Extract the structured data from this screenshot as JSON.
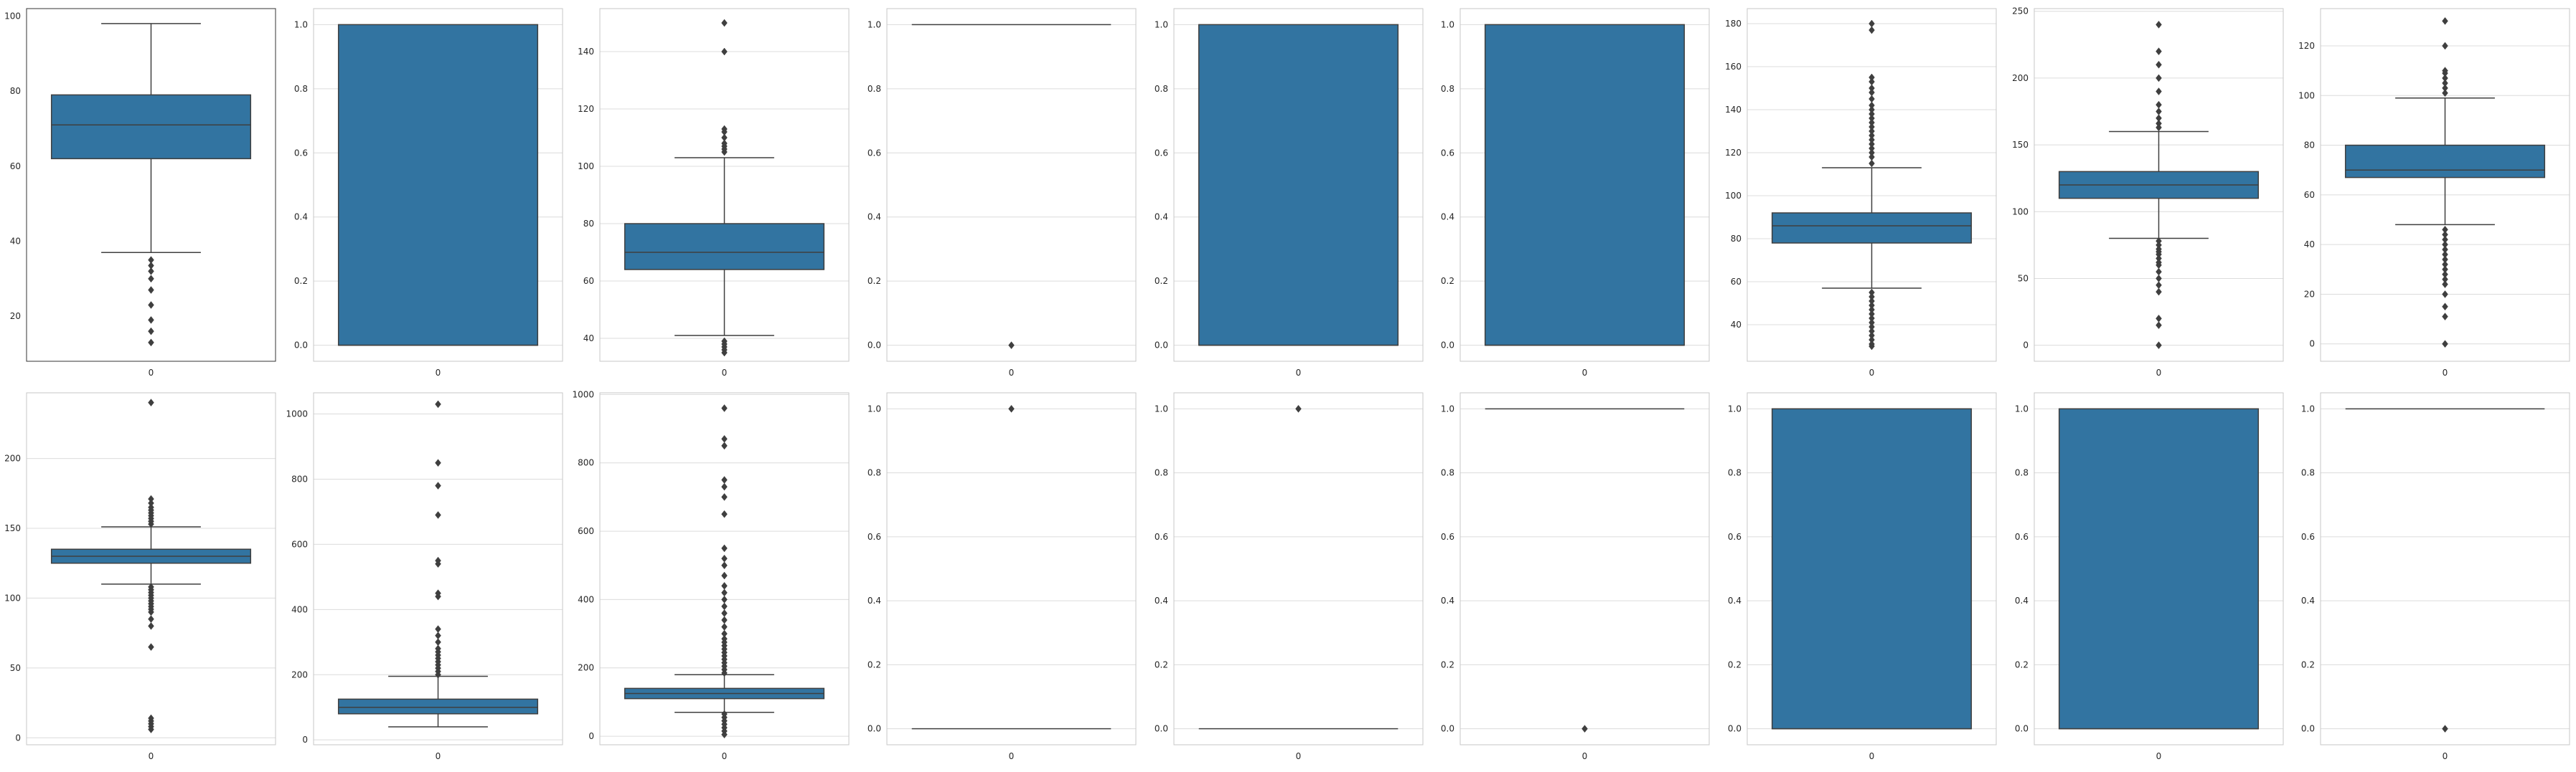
{
  "figure": {
    "background": "#ffffff",
    "box_color": "#3274a1",
    "line_color": "#3f3f3f",
    "frame_color": "#c7c7c7",
    "grid_color": "#dcdcdc",
    "grid": true,
    "layout": "2 rows x 9 columns"
  },
  "chart_data": [
    {
      "type": "box",
      "categories": [
        "0"
      ],
      "ylim": [
        8,
        102
      ],
      "yticks": [
        20,
        40,
        60,
        80,
        100
      ],
      "grid": false,
      "box": {
        "q1": 62,
        "median": 71,
        "q3": 79,
        "whisker_low": 37,
        "whisker_high": 98
      },
      "outliers": [
        35,
        33.5,
        32,
        30,
        27,
        23,
        19,
        16,
        13
      ]
    },
    {
      "type": "box",
      "categories": [
        "0"
      ],
      "ylim": [
        -0.05,
        1.05
      ],
      "yticks": [
        0.0,
        0.2,
        0.4,
        0.6,
        0.8,
        1.0
      ],
      "grid": true,
      "box": {
        "q1": 0,
        "median": 0,
        "q3": 1,
        "whisker_low": 0,
        "whisker_high": 1
      },
      "outliers": []
    },
    {
      "type": "box",
      "categories": [
        "0"
      ],
      "ylim": [
        32,
        155
      ],
      "yticks": [
        40,
        60,
        80,
        100,
        120,
        140
      ],
      "grid": true,
      "box": {
        "q1": 64,
        "median": 70,
        "q3": 80,
        "whisker_low": 41,
        "whisker_high": 103
      },
      "outliers": [
        105,
        106,
        107,
        108,
        110,
        112,
        113,
        140,
        150,
        39,
        38,
        37,
        36,
        35
      ]
    },
    {
      "type": "box",
      "categories": [
        "0"
      ],
      "ylim": [
        -0.05,
        1.05
      ],
      "yticks": [
        0.0,
        0.2,
        0.4,
        0.6,
        0.8,
        1.0
      ],
      "grid": true,
      "box": {
        "q1": 1,
        "median": 1,
        "q3": 1,
        "whisker_low": 1,
        "whisker_high": 1
      },
      "outliers": [
        0
      ]
    },
    {
      "type": "box",
      "categories": [
        "0"
      ],
      "ylim": [
        -0.05,
        1.05
      ],
      "yticks": [
        0.0,
        0.2,
        0.4,
        0.6,
        0.8,
        1.0
      ],
      "grid": true,
      "box": {
        "q1": 0,
        "median": 0,
        "q3": 1,
        "whisker_low": 0,
        "whisker_high": 1
      },
      "outliers": []
    },
    {
      "type": "box",
      "categories": [
        "0"
      ],
      "ylim": [
        -0.05,
        1.05
      ],
      "yticks": [
        0.0,
        0.2,
        0.4,
        0.6,
        0.8,
        1.0
      ],
      "grid": true,
      "box": {
        "q1": 0,
        "median": 0,
        "q3": 1,
        "whisker_low": 0,
        "whisker_high": 1
      },
      "outliers": []
    },
    {
      "type": "box",
      "categories": [
        "0"
      ],
      "ylim": [
        23,
        187
      ],
      "yticks": [
        40,
        60,
        80,
        100,
        120,
        140,
        160,
        180
      ],
      "grid": true,
      "box": {
        "q1": 78,
        "median": 86,
        "q3": 92,
        "whisker_low": 57,
        "whisker_high": 113
      },
      "outliers": [
        115,
        118,
        120,
        122,
        124,
        126,
        128,
        130,
        132,
        134,
        136,
        138,
        140,
        142,
        145,
        148,
        150,
        153,
        155,
        177,
        180,
        55,
        53,
        51,
        49,
        47,
        45,
        43,
        41,
        39,
        37,
        35,
        33,
        31,
        30
      ]
    },
    {
      "type": "box",
      "categories": [
        "0"
      ],
      "ylim": [
        -12,
        252
      ],
      "yticks": [
        0,
        50,
        100,
        150,
        200,
        250
      ],
      "grid": true,
      "box": {
        "q1": 110,
        "median": 120,
        "q3": 130,
        "whisker_low": 80,
        "whisker_high": 160
      },
      "outliers": [
        163,
        166,
        170,
        175,
        180,
        190,
        200,
        210,
        220,
        240,
        78,
        75,
        72,
        70,
        68,
        65,
        62,
        60,
        55,
        50,
        45,
        40,
        20,
        15,
        0
      ]
    },
    {
      "type": "box",
      "categories": [
        "0"
      ],
      "ylim": [
        -7,
        135
      ],
      "yticks": [
        0,
        20,
        40,
        60,
        80,
        100,
        120
      ],
      "grid": true,
      "box": {
        "q1": 67,
        "median": 70,
        "q3": 80,
        "whisker_low": 48,
        "whisker_high": 99
      },
      "outliers": [
        101,
        103,
        105,
        107,
        109,
        110,
        120,
        130,
        46,
        44,
        42,
        40,
        38,
        36,
        34,
        32,
        30,
        28,
        26,
        24,
        20,
        15,
        11,
        0
      ]
    },
    {
      "type": "box",
      "categories": [
        "0"
      ],
      "ylim": [
        -5,
        247
      ],
      "yticks": [
        0,
        50,
        100,
        150,
        200
      ],
      "grid": true,
      "box": {
        "q1": 125,
        "median": 130,
        "q3": 135,
        "whisker_low": 110,
        "whisker_high": 151
      },
      "outliers": [
        153,
        155,
        157,
        159,
        161,
        163,
        165,
        168,
        171,
        240,
        108,
        106,
        104,
        102,
        100,
        98,
        96,
        94,
        92,
        90,
        85,
        80,
        65,
        14,
        12,
        10,
        8,
        6
      ]
    },
    {
      "type": "box",
      "categories": [
        "0"
      ],
      "ylim": [
        -15,
        1065
      ],
      "yticks": [
        0,
        200,
        400,
        600,
        800,
        1000
      ],
      "grid": true,
      "box": {
        "q1": 80,
        "median": 100,
        "q3": 125,
        "whisker_low": 40,
        "whisker_high": 195
      },
      "outliers": [
        200,
        210,
        220,
        230,
        240,
        250,
        260,
        270,
        280,
        300,
        320,
        340,
        440,
        450,
        540,
        550,
        690,
        780,
        850,
        1030
      ]
    },
    {
      "type": "box",
      "categories": [
        "0"
      ],
      "ylim": [
        -25,
        1005
      ],
      "yticks": [
        0,
        200,
        400,
        600,
        800,
        1000
      ],
      "grid": true,
      "box": {
        "q1": 110,
        "median": 125,
        "q3": 140,
        "whisker_low": 70,
        "whisker_high": 180
      },
      "outliers": [
        185,
        195,
        205,
        215,
        225,
        235,
        245,
        255,
        265,
        275,
        285,
        300,
        320,
        340,
        360,
        380,
        400,
        420,
        440,
        470,
        500,
        520,
        550,
        650,
        700,
        730,
        750,
        850,
        870,
        960,
        65,
        55,
        45,
        35,
        25,
        15,
        5
      ]
    },
    {
      "type": "box",
      "categories": [
        "0"
      ],
      "ylim": [
        -0.05,
        1.05
      ],
      "yticks": [
        0.0,
        0.2,
        0.4,
        0.6,
        0.8,
        1.0
      ],
      "grid": true,
      "box": {
        "q1": 0,
        "median": 0,
        "q3": 0,
        "whisker_low": 0,
        "whisker_high": 0
      },
      "outliers": [
        1
      ]
    },
    {
      "type": "box",
      "categories": [
        "0"
      ],
      "ylim": [
        -0.05,
        1.05
      ],
      "yticks": [
        0.0,
        0.2,
        0.4,
        0.6,
        0.8,
        1.0
      ],
      "grid": true,
      "box": {
        "q1": 0,
        "median": 0,
        "q3": 0,
        "whisker_low": 0,
        "whisker_high": 0
      },
      "outliers": [
        1
      ]
    },
    {
      "type": "box",
      "categories": [
        "0"
      ],
      "ylim": [
        -0.05,
        1.05
      ],
      "yticks": [
        0.0,
        0.2,
        0.4,
        0.6,
        0.8,
        1.0
      ],
      "grid": true,
      "box": {
        "q1": 1,
        "median": 1,
        "q3": 1,
        "whisker_low": 1,
        "whisker_high": 1
      },
      "outliers": [
        0
      ]
    },
    {
      "type": "box",
      "categories": [
        "0"
      ],
      "ylim": [
        -0.05,
        1.05
      ],
      "yticks": [
        0.0,
        0.2,
        0.4,
        0.6,
        0.8,
        1.0
      ],
      "grid": true,
      "box": {
        "q1": 0,
        "median": 0,
        "q3": 1,
        "whisker_low": 0,
        "whisker_high": 1
      },
      "outliers": []
    },
    {
      "type": "box",
      "categories": [
        "0"
      ],
      "ylim": [
        -0.05,
        1.05
      ],
      "yticks": [
        0.0,
        0.2,
        0.4,
        0.6,
        0.8,
        1.0
      ],
      "grid": true,
      "box": {
        "q1": 0,
        "median": 0,
        "q3": 1,
        "whisker_low": 0,
        "whisker_high": 1
      },
      "outliers": []
    },
    {
      "type": "box",
      "categories": [
        "0"
      ],
      "ylim": [
        -0.05,
        1.05
      ],
      "yticks": [
        0.0,
        0.2,
        0.4,
        0.6,
        0.8,
        1.0
      ],
      "grid": true,
      "box": {
        "q1": 1,
        "median": 1,
        "q3": 1,
        "whisker_low": 1,
        "whisker_high": 1
      },
      "outliers": [
        0
      ]
    }
  ]
}
